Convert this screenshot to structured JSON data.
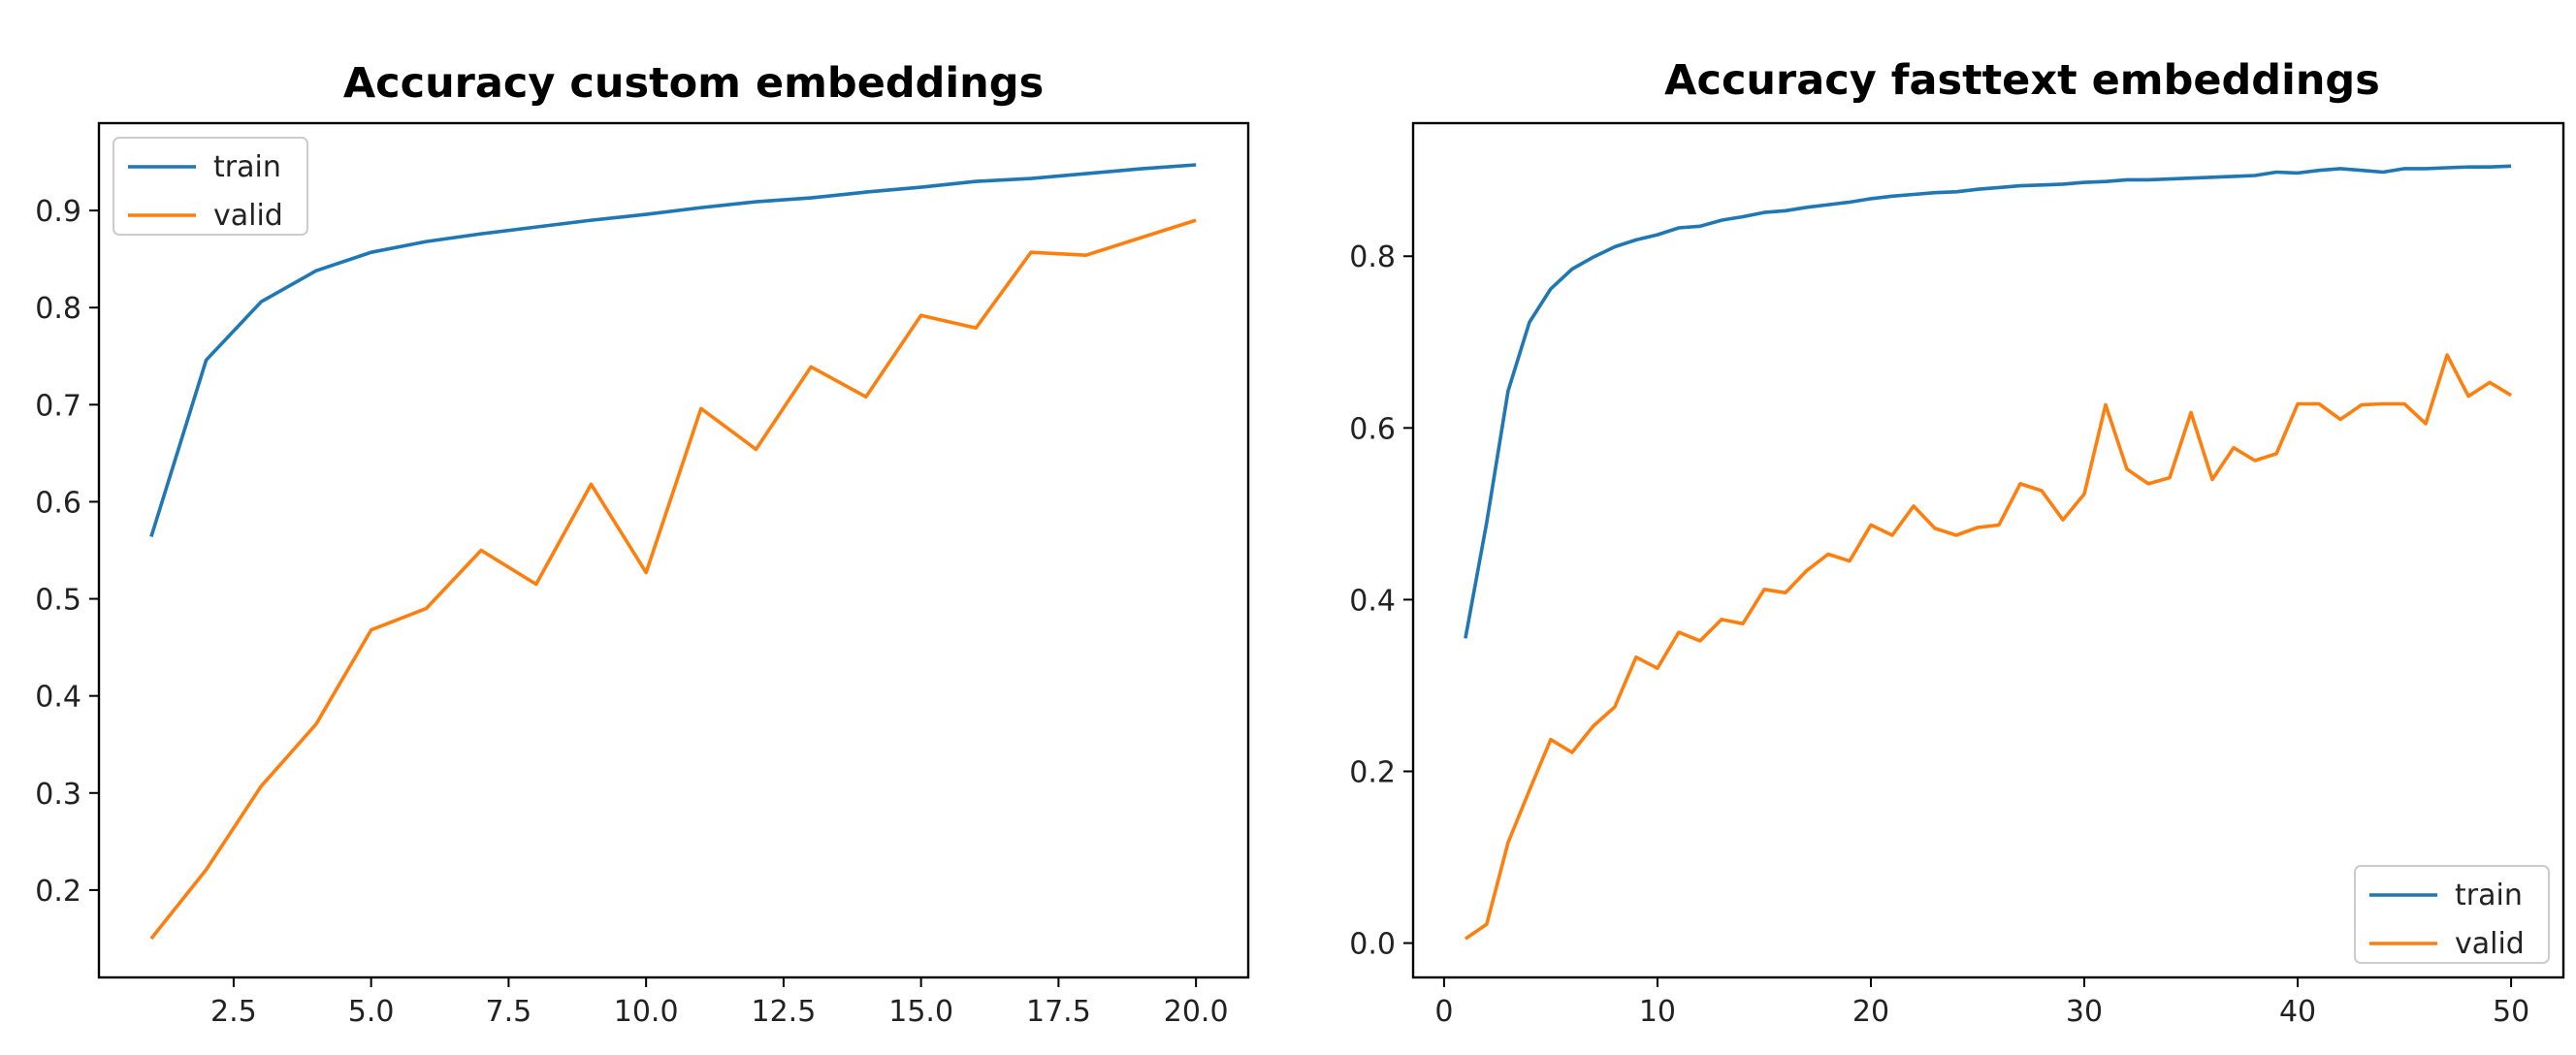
{
  "colors": {
    "train": "#1f77b4",
    "valid": "#ff7f0e"
  },
  "chart_data": [
    {
      "type": "line",
      "title": "Accuracy custom embeddings",
      "xlabel": "",
      "ylabel": "",
      "xlim": [
        0.05,
        20.95
      ],
      "ylim": [
        0.11,
        0.99
      ],
      "xticks": [
        2.5,
        5.0,
        7.5,
        10.0,
        12.5,
        15.0,
        17.5,
        20.0
      ],
      "xtick_labels": [
        "2.5",
        "5.0",
        "7.5",
        "10.0",
        "12.5",
        "15.0",
        "17.5",
        "20.0"
      ],
      "yticks": [
        0.2,
        0.3,
        0.4,
        0.5,
        0.6,
        0.7,
        0.8,
        0.9
      ],
      "ytick_labels": [
        "0.2",
        "0.3",
        "0.4",
        "0.5",
        "0.6",
        "0.7",
        "0.8",
        "0.9"
      ],
      "legend_position": "top-left",
      "grid": false,
      "x": [
        1,
        2,
        3,
        4,
        5,
        6,
        7,
        8,
        9,
        10,
        11,
        12,
        13,
        14,
        15,
        16,
        17,
        18,
        19,
        20
      ],
      "series": [
        {
          "name": "train",
          "values": [
            0.564,
            0.746,
            0.806,
            0.838,
            0.857,
            0.868,
            0.876,
            0.883,
            0.89,
            0.896,
            0.903,
            0.909,
            0.913,
            0.919,
            0.924,
            0.93,
            0.933,
            0.938,
            0.943,
            0.947
          ]
        },
        {
          "name": "valid",
          "values": [
            0.15,
            0.221,
            0.307,
            0.371,
            0.468,
            0.49,
            0.55,
            0.515,
            0.618,
            0.527,
            0.696,
            0.654,
            0.739,
            0.708,
            0.792,
            0.779,
            0.857,
            0.854,
            0.872,
            0.89
          ]
        }
      ]
    },
    {
      "type": "line",
      "title": "Accuracy fasttext embeddings",
      "xlabel": "",
      "ylabel": "",
      "xlim": [
        -1.45,
        52.45
      ],
      "ylim": [
        -0.04,
        0.955
      ],
      "xticks": [
        0,
        10,
        20,
        30,
        40,
        50
      ],
      "xtick_labels": [
        "0",
        "10",
        "20",
        "30",
        "40",
        "50"
      ],
      "yticks": [
        0.0,
        0.2,
        0.4,
        0.6,
        0.8
      ],
      "ytick_labels": [
        "0.0",
        "0.2",
        "0.4",
        "0.6",
        "0.8"
      ],
      "legend_position": "bottom-right",
      "grid": false,
      "x": [
        1,
        2,
        3,
        4,
        5,
        6,
        7,
        8,
        9,
        10,
        11,
        12,
        13,
        14,
        15,
        16,
        17,
        18,
        19,
        20,
        21,
        22,
        23,
        24,
        25,
        26,
        27,
        28,
        29,
        30,
        31,
        32,
        33,
        34,
        35,
        36,
        37,
        38,
        39,
        40,
        41,
        42,
        43,
        44,
        45,
        46,
        47,
        48,
        49,
        50
      ],
      "series": [
        {
          "name": "train",
          "values": [
            0.355,
            0.49,
            0.643,
            0.723,
            0.762,
            0.785,
            0.799,
            0.811,
            0.819,
            0.825,
            0.833,
            0.835,
            0.842,
            0.846,
            0.851,
            0.853,
            0.857,
            0.86,
            0.863,
            0.867,
            0.87,
            0.872,
            0.874,
            0.875,
            0.878,
            0.88,
            0.882,
            0.883,
            0.884,
            0.886,
            0.887,
            0.889,
            0.889,
            0.89,
            0.891,
            0.892,
            0.893,
            0.894,
            0.898,
            0.897,
            0.9,
            0.902,
            0.9,
            0.898,
            0.902,
            0.902,
            0.903,
            0.904,
            0.904,
            0.905
          ]
        },
        {
          "name": "valid",
          "values": [
            0.005,
            0.022,
            0.117,
            0.178,
            0.237,
            0.222,
            0.253,
            0.275,
            0.333,
            0.32,
            0.362,
            0.352,
            0.377,
            0.372,
            0.412,
            0.408,
            0.434,
            0.453,
            0.445,
            0.487,
            0.475,
            0.509,
            0.483,
            0.475,
            0.484,
            0.487,
            0.535,
            0.527,
            0.493,
            0.523,
            0.627,
            0.552,
            0.535,
            0.542,
            0.618,
            0.54,
            0.577,
            0.562,
            0.57,
            0.628,
            0.628,
            0.61,
            0.627,
            0.628,
            0.628,
            0.605,
            0.685,
            0.637,
            0.653,
            0.638
          ]
        }
      ]
    }
  ]
}
